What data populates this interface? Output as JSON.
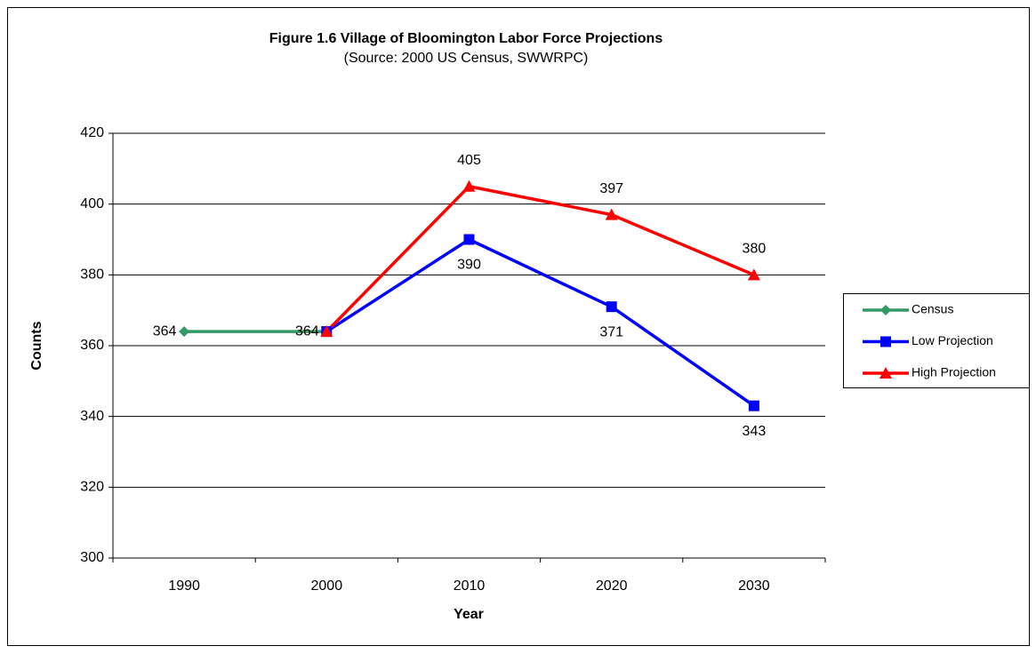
{
  "chart_data": {
    "type": "line",
    "title": "Figure 1.6 Village of Bloomington Labor Force Projections",
    "subtitle": "(Source:  2000 US Census, SWWRPC)",
    "x_label": "Year",
    "y_label": "Counts",
    "categories": [
      "1990",
      "2000",
      "2010",
      "2020",
      "2030"
    ],
    "series": [
      {
        "name": "Census",
        "color": "#339966",
        "marker": "diamond",
        "label_position": "left",
        "values": [
          364,
          364,
          null,
          null,
          null
        ],
        "value_labels": [
          "364",
          "364",
          null,
          null,
          null
        ]
      },
      {
        "name": "Low Projection",
        "color": "#0000ff",
        "marker": "square",
        "label_position": "below",
        "values": [
          null,
          364,
          390,
          371,
          343
        ],
        "value_labels": [
          null,
          null,
          "390",
          "371",
          "343"
        ]
      },
      {
        "name": "High Projection",
        "color": "#ff0000",
        "marker": "triangle",
        "label_position": "above",
        "values": [
          null,
          364,
          405,
          397,
          380
        ],
        "value_labels": [
          null,
          null,
          "405",
          "397",
          "380"
        ]
      }
    ],
    "ylim": [
      300,
      420
    ],
    "yticks": [
      300,
      320,
      340,
      360,
      380,
      400,
      420
    ],
    "grid": true,
    "legend": "right"
  }
}
